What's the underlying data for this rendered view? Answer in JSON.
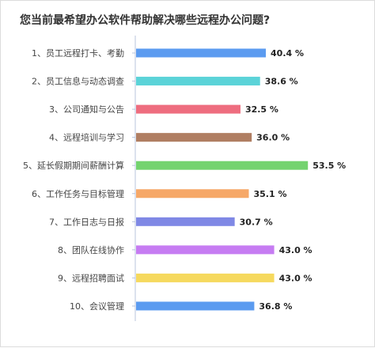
{
  "chart_data": {
    "type": "bar",
    "orientation": "horizontal",
    "title": "您当前最希望办公软件帮助解决哪些远程办公问题?",
    "categories": [
      "1、员工远程打卡、考勤",
      "2、员工信息与动态调查",
      "3、公司通知与公告",
      "4、远程培训与学习",
      "5、延长假期期间薪酬计算",
      "6、工作任务与目标管理",
      "7、工作日志与日报",
      "8、团队在线协作",
      "9、远程招聘面试",
      "10、会议管理"
    ],
    "values": [
      40.4,
      38.6,
      32.5,
      36.0,
      53.5,
      35.1,
      30.7,
      43.0,
      43.0,
      36.8
    ],
    "value_labels": [
      "40.4 %",
      "38.6 %",
      "32.5 %",
      "36.0 %",
      "53.5 %",
      "35.1 %",
      "30.7 %",
      "43.0 %",
      "43.0 %",
      "36.8 %"
    ],
    "colors": [
      "#5b9bf0",
      "#5bd3d8",
      "#ee6d7f",
      "#b07e62",
      "#74d36f",
      "#f6a868",
      "#7f88e5",
      "#c67cf2",
      "#f6d95e",
      "#5b9bf0"
    ],
    "xlim": [
      0,
      60
    ],
    "grid": false,
    "legend": "none"
  }
}
